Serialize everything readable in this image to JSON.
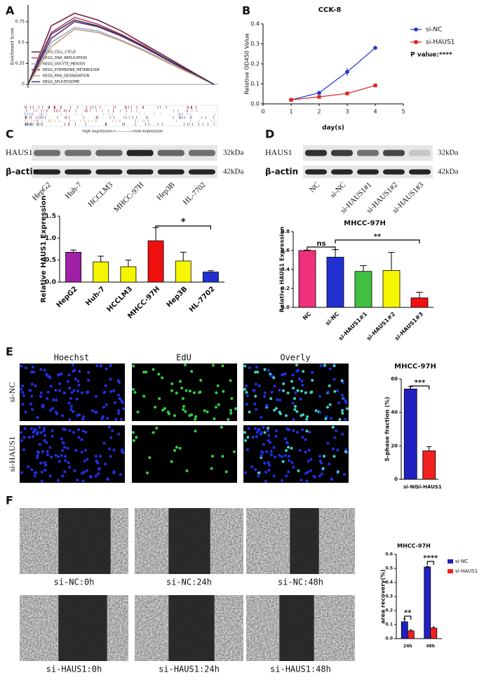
{
  "panels": [
    "A",
    "B",
    "C",
    "D",
    "E",
    "F"
  ],
  "chart_data": [
    {
      "type": "line",
      "y_label": "Enrichment Score",
      "categories": [
        null,
        null,
        null,
        null,
        null,
        null,
        null,
        null,
        null
      ],
      "ylim": [
        -0.04,
        0.95
      ],
      "yticks": [
        0,
        0.25,
        0.5,
        0.75
      ],
      "series": [
        {
          "name": "KEGG_CELL_CYCLE",
          "color": "#7a1f3d",
          "values": [
            0,
            0.7,
            0.85,
            0.77,
            0.64,
            0.48,
            0.32,
            0.16,
            0
          ]
        },
        {
          "name": "KEGG_DNA_REPLICATION",
          "color": "#b84a6a",
          "values": [
            0,
            0.62,
            0.8,
            0.72,
            0.6,
            0.46,
            0.3,
            0.15,
            0
          ]
        },
        {
          "name": "KEGG_OOCYTE_MEIOSIS",
          "color": "#8fb0d8",
          "values": [
            0,
            0.5,
            0.68,
            0.64,
            0.53,
            0.41,
            0.27,
            0.13,
            0
          ]
        },
        {
          "name": "KEGG_PYRIMIDINE_METABOLISM",
          "color": "#6b2a5a",
          "values": [
            0,
            0.55,
            0.75,
            0.69,
            0.58,
            0.44,
            0.29,
            0.14,
            0
          ]
        },
        {
          "name": "KEGG_RNA_DEGRADATION",
          "color": "#c9a070",
          "values": [
            0,
            0.45,
            0.66,
            0.62,
            0.52,
            0.4,
            0.26,
            0.13,
            0
          ]
        },
        {
          "name": "KEGG_SPLICEOSOME",
          "color": "#3a3a6a",
          "values": [
            0,
            0.6,
            0.77,
            0.7,
            0.59,
            0.45,
            0.3,
            0.15,
            0
          ]
        }
      ],
      "annotation": "high expression<----------->low expression"
    },
    {
      "type": "line",
      "title": "CCK-8",
      "x_label": "day(s)",
      "y_label": "Relative OD450 Value",
      "x": [
        1,
        2,
        3,
        4
      ],
      "xlim": [
        0,
        5
      ],
      "xticks": [
        0,
        1,
        2,
        3,
        4,
        5
      ],
      "ylim": [
        0,
        0.4
      ],
      "yticks": [
        {
          "value": 0,
          "label": "0.0"
        },
        0.1,
        0.2,
        0.3,
        0.4
      ],
      "series": [
        {
          "name": "si-NC",
          "color": "#2233cc",
          "marker": "circle",
          "values": [
            0.02,
            0.055,
            0.16,
            0.28
          ],
          "errors": [
            0.003,
            0.005,
            0.02,
            0.003
          ]
        },
        {
          "name": "si-HAUS1",
          "color": "#e02020",
          "marker": "square",
          "values": [
            0.02,
            0.035,
            0.052,
            0.092
          ],
          "errors": [
            0.002,
            0.003,
            0.004,
            0.004
          ]
        }
      ],
      "annotation": "P value:****"
    },
    {
      "type": "bar",
      "y_label": "Relative HAUS1 Expression",
      "categories": [
        "HepG2",
        "Huh-7",
        "HCCLM3",
        "MHCC-97H",
        "Hep3B",
        "HL-7702"
      ],
      "values": [
        0.68,
        0.46,
        0.35,
        0.94,
        0.48,
        0.23
      ],
      "errors": [
        0.05,
        0.13,
        0.15,
        0.3,
        0.2,
        0.03
      ],
      "colors": [
        "#a020a8",
        "#f5f500",
        "#f5f500",
        "#f01010",
        "#f5f500",
        "#2030d0"
      ],
      "ylim": [
        0,
        1.5
      ],
      "yticks": [
        {
          "value": 0,
          "label": "0.0"
        },
        0.5,
        {
          "value": 1,
          "label": "1.0"
        },
        1.5
      ],
      "significance": [
        "*"
      ]
    },
    {
      "type": "bar",
      "title": "MHCC-97H",
      "y_label": "Relative HAUS1 Expression",
      "categories": [
        "NC",
        "si-NC",
        "si-HAUS1#1",
        "si-HAUS1#2",
        "si-HAUS1#3"
      ],
      "values": [
        0.6,
        0.53,
        0.38,
        0.39,
        0.1
      ],
      "errors": [
        0.005,
        0.08,
        0.06,
        0.19,
        0.06
      ],
      "colors": [
        "#f0307a",
        "#2030d0",
        "#40c040",
        "#f5f500",
        "#f01010"
      ],
      "ylim": [
        0,
        0.8
      ],
      "yticks": [
        {
          "value": 0,
          "label": "0.0"
        },
        0.2,
        0.4,
        0.6,
        0.8
      ],
      "significance": [
        "ns",
        "**"
      ]
    },
    {
      "type": "bar",
      "title": "MHCC-97H",
      "y_label": "S-phase fraction (%)",
      "categories": [
        "si-NC",
        "si-HAUS1"
      ],
      "values": [
        54,
        17
      ],
      "errors": [
        1.5,
        2.5
      ],
      "colors": [
        "#2020c0",
        "#f02020"
      ],
      "ylim": [
        0,
        60
      ],
      "yticks": [
        0,
        20,
        40,
        60
      ],
      "significance": [
        "***"
      ]
    },
    {
      "type": "bar",
      "title": "MHCC-97H",
      "y_label": "area recovery(%)",
      "categories": [
        "24h",
        "48h"
      ],
      "series": [
        {
          "name": "si-NC",
          "color": "#2020c0",
          "values": [
            0.12,
            0.51
          ],
          "errors": [
            0.02,
            0.005
          ]
        },
        {
          "name": "si-HAUS1",
          "color": "#f02020",
          "values": [
            0.055,
            0.075
          ],
          "errors": [
            0.007,
            0.007
          ]
        }
      ],
      "ylim": [
        0,
        0.6
      ],
      "yticks": [
        {
          "value": 0,
          "label": "0.0"
        },
        0.1,
        0.2,
        0.3,
        0.4,
        0.5,
        0.6
      ],
      "significance": [
        "**",
        "****"
      ]
    }
  ],
  "blots": [
    {
      "proteins": [
        "HAUS1",
        "β-actin"
      ],
      "sizes": [
        "32kDa",
        "42kDa"
      ],
      "lanes": [
        "HepG2",
        "Huh-7",
        "HCCLM3",
        "MHCC-97H",
        "Hep3B",
        "HL-7702"
      ]
    },
    {
      "proteins": [
        "HAUS1",
        "β-actin"
      ],
      "sizes": [
        "32kDa",
        "42kDa"
      ],
      "lanes": [
        "NC",
        "si-NC",
        "si-HAUS1#1",
        "si-HAUS1#2",
        "si-HAUS1#3"
      ]
    }
  ],
  "edu": {
    "columns": [
      "Hoechst",
      "EdU",
      "Overly"
    ],
    "rows": [
      "si-NC",
      "si-HAUS1"
    ]
  },
  "wound": {
    "captions": [
      [
        "si-NC:0h",
        "si-NC:24h",
        "si-NC:48h"
      ],
      [
        "si-HAUS1:0h",
        "si-HAUS1:24h",
        "si-HAUS1:48h"
      ]
    ]
  }
}
